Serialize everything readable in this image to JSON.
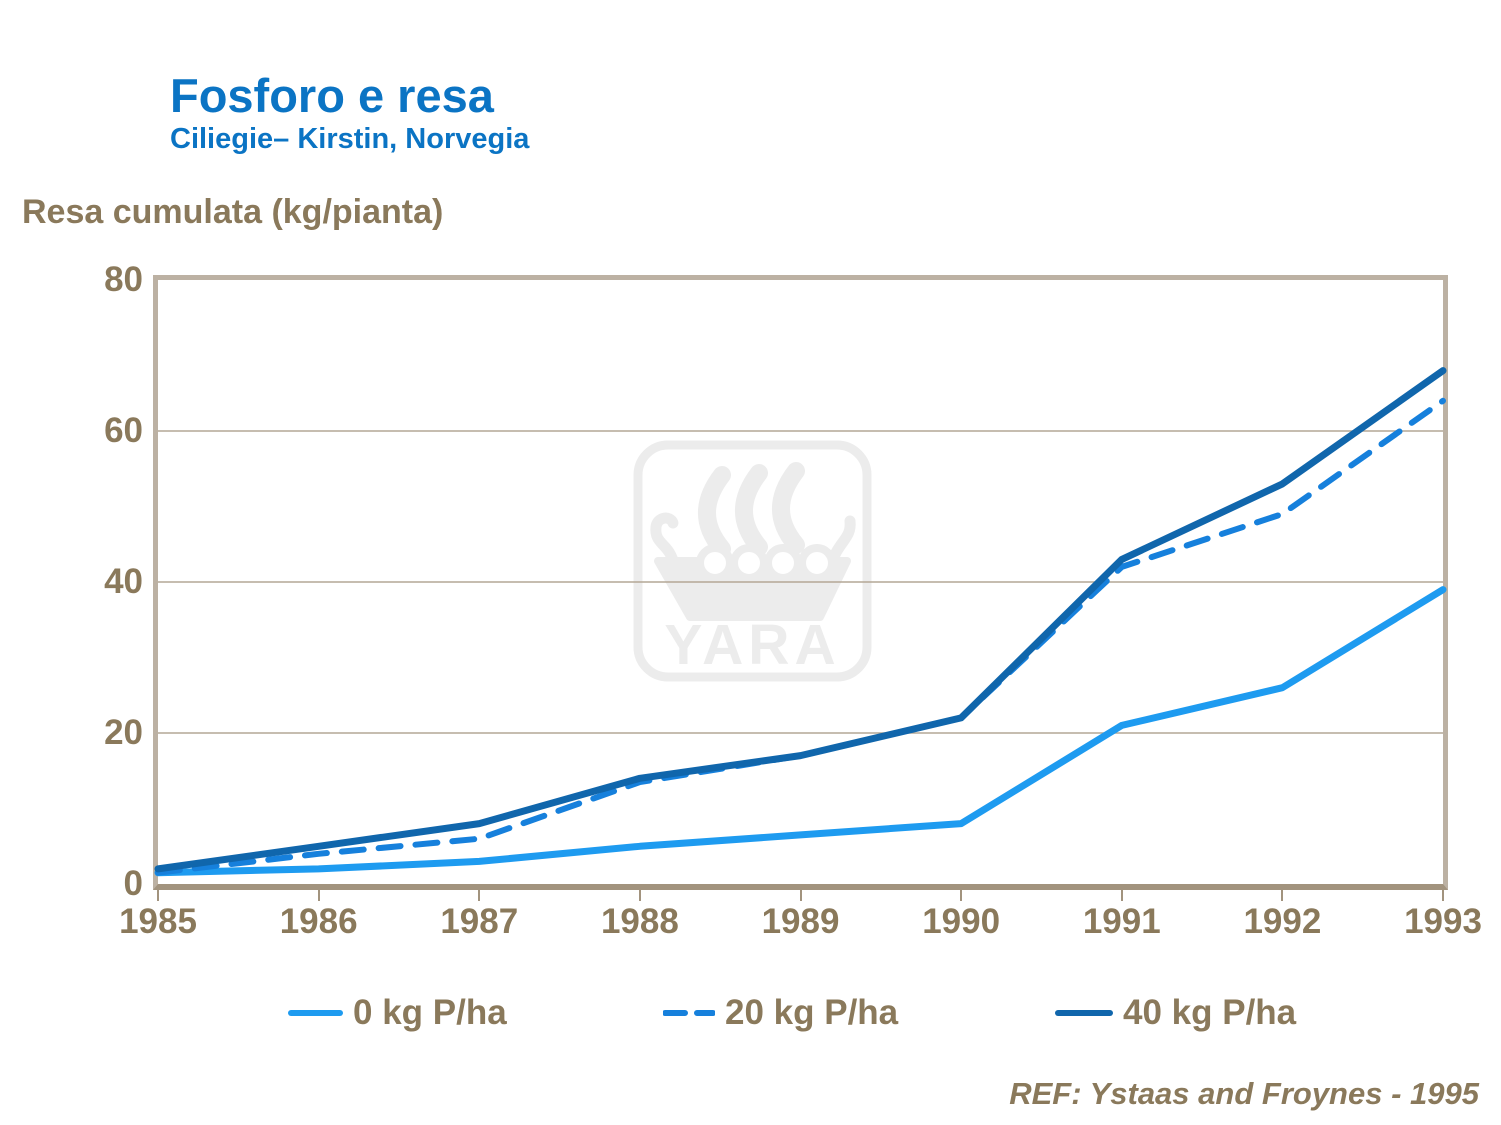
{
  "title": "Fosforo e resa",
  "subtitle": "Ciliegie– Kirstin, Norvegia",
  "y_axis_title": "Resa cumulata (kg/pianta)",
  "footer_reference": "REF: Ystaas and Froynes - 1995",
  "watermark_text": "YARA",
  "colors": {
    "title_blue": "#0B74C4",
    "text_brown": "#8A795B",
    "frame_border": "#BCB1A3",
    "axis_line": "#A2937E",
    "gridline": "#B3A795",
    "watermark_gray": "#ECECEC",
    "series_0kg": "#1E9BF0",
    "series_20kg": "#1680DC",
    "series_40kg": "#1066AC"
  },
  "chart_data": {
    "type": "line",
    "title": "Fosforo e resa",
    "xlabel": "",
    "ylabel": "Resa cumulata (kg/pianta)",
    "x": [
      1985,
      1986,
      1987,
      1988,
      1989,
      1990,
      1991,
      1992,
      1993
    ],
    "series": [
      {
        "name": "0 kg P/ha",
        "style": "solid",
        "color": "#1E9BF0",
        "values": [
          1.5,
          2,
          3,
          5,
          6.5,
          8,
          21,
          26,
          39
        ]
      },
      {
        "name": "20 kg P/ha",
        "style": "dashed",
        "color": "#1680DC",
        "values": [
          1.5,
          4,
          6,
          13.5,
          17,
          22,
          42,
          49,
          64
        ]
      },
      {
        "name": "40 kg P/ha",
        "style": "solid",
        "color": "#1066AC",
        "values": [
          2,
          5,
          8,
          14,
          17,
          22,
          43,
          53,
          68
        ]
      }
    ],
    "ylim": [
      0,
      80
    ],
    "yticks": [
      0,
      20,
      40,
      60,
      80
    ],
    "grid": "horizontal",
    "legend_position": "bottom"
  }
}
